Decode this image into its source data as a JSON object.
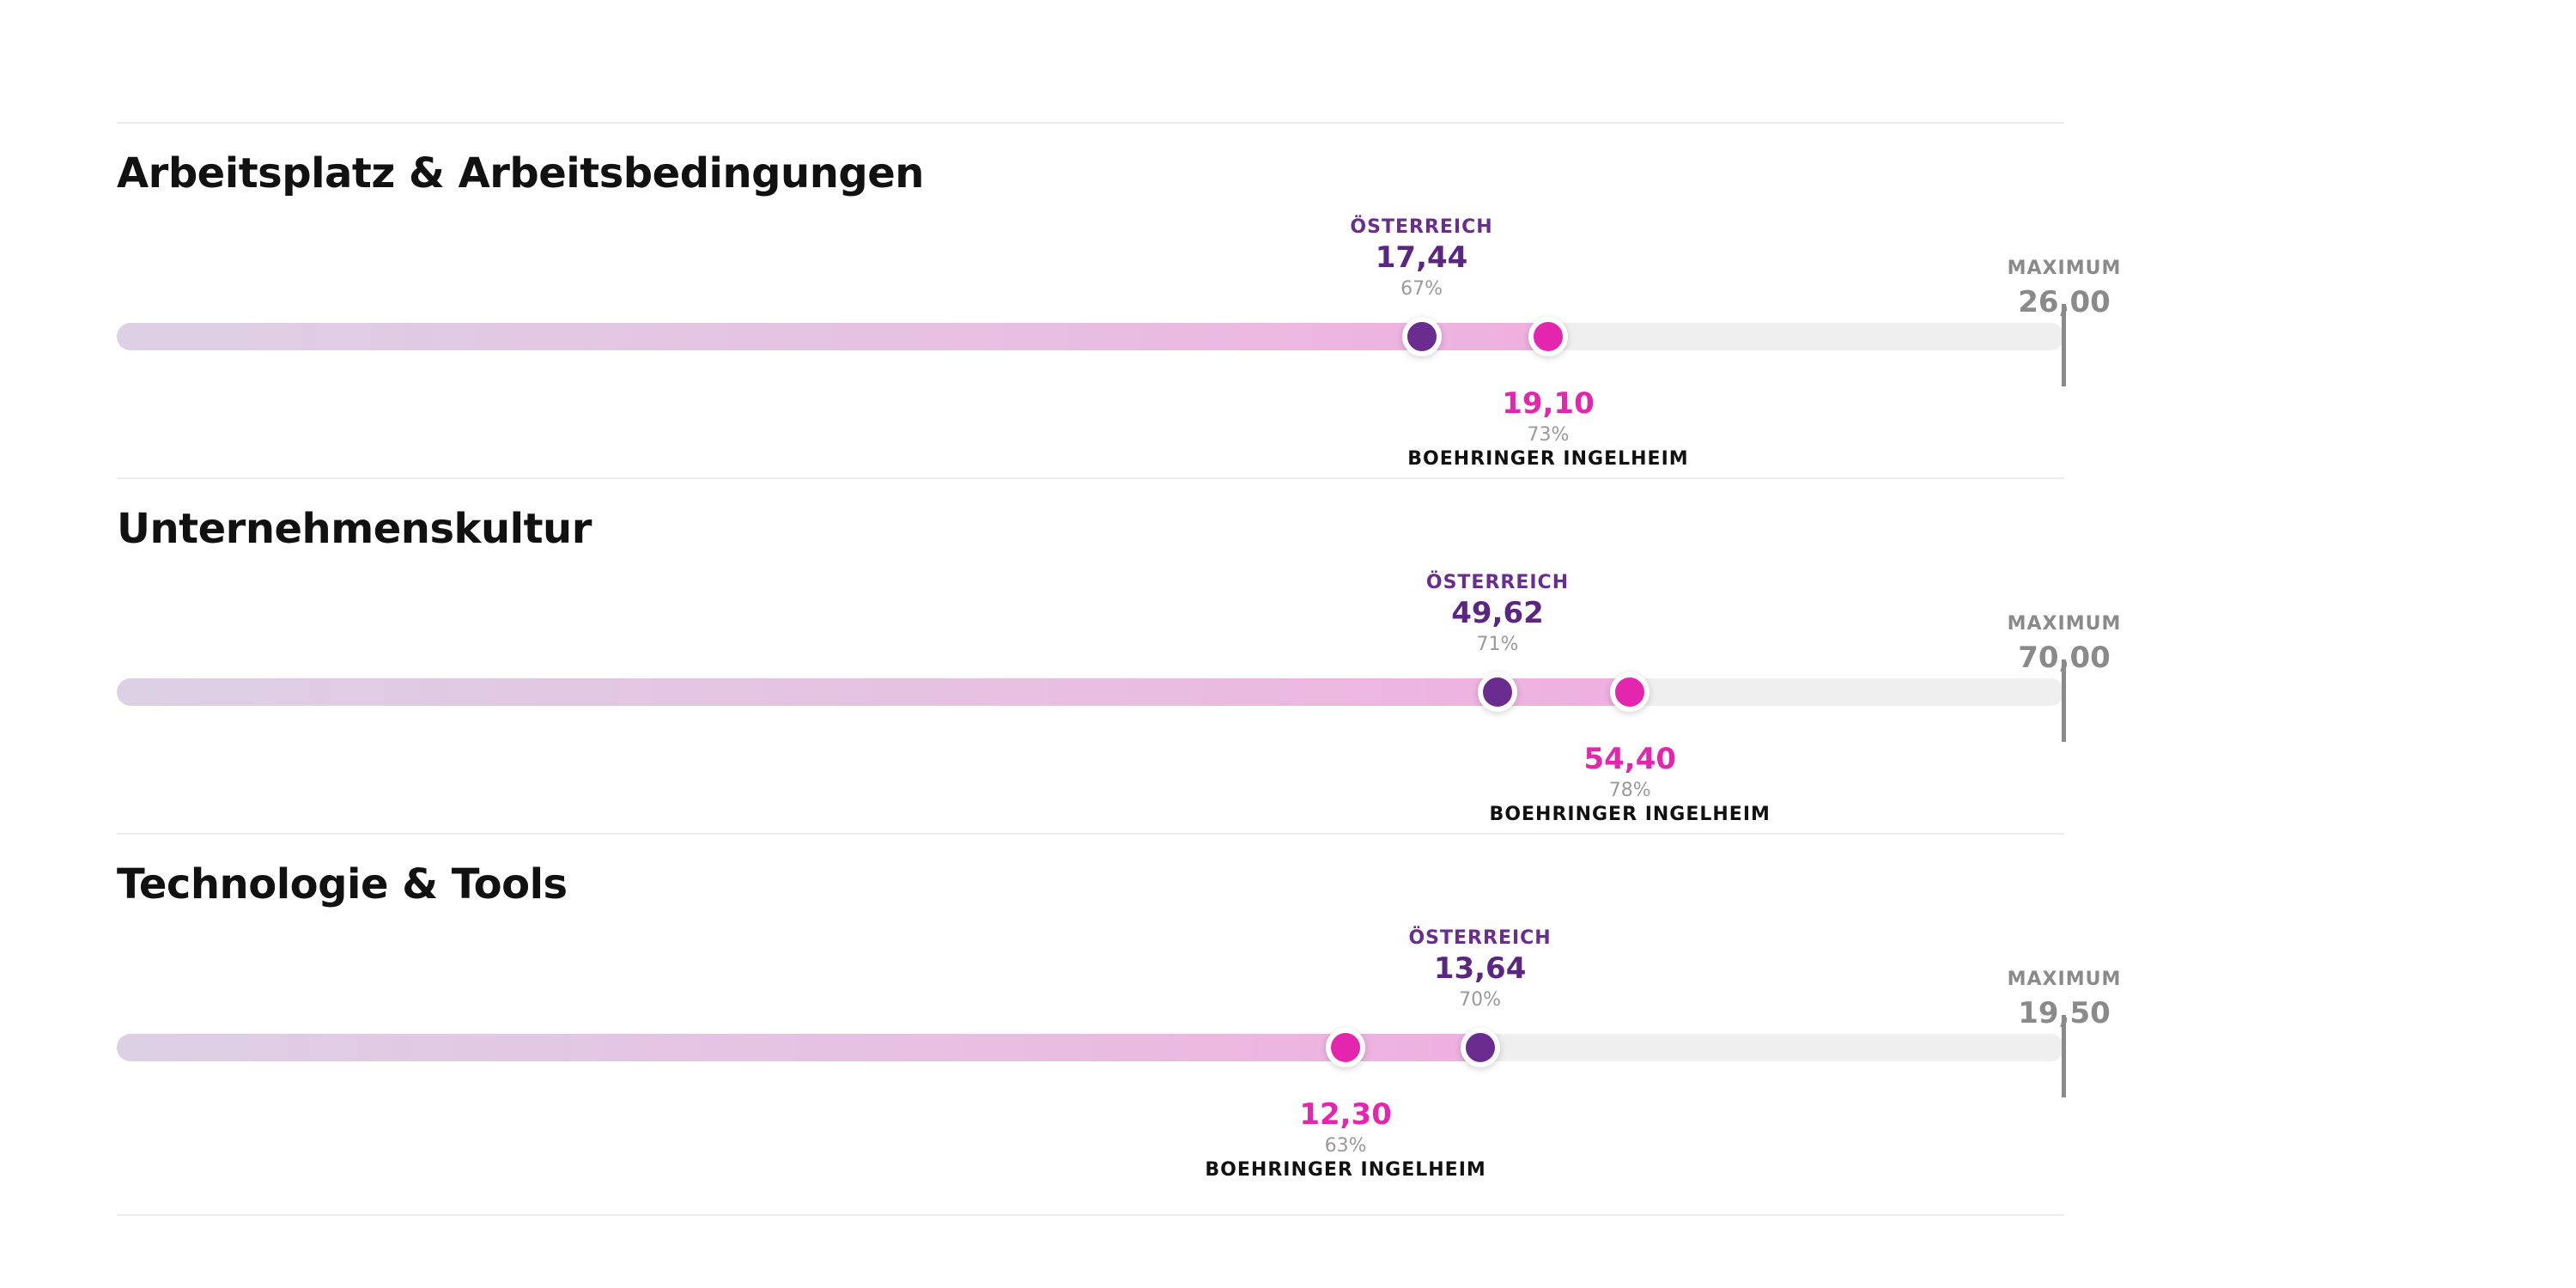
{
  "labels": {
    "austria": "ÖSTERREICH",
    "maximum": "MAXIMUM",
    "company": "BOEHRINGER INGELHEIM"
  },
  "colors": {
    "austria": "#6a2c8e",
    "company": "#e326ad",
    "track": "#efefef",
    "maximum": "#8a8a8a"
  },
  "sections": [
    {
      "title": "Arbeitsplatz & Arbeitsbedingungen",
      "maximum": "26,00",
      "austria": {
        "value": "17,44",
        "percent": "67%",
        "fraction": 0.67
      },
      "company": {
        "value": "19,10",
        "percent": "73%",
        "fraction": 0.735
      }
    },
    {
      "title": "Unternehmenskultur",
      "maximum": "70,00",
      "austria": {
        "value": "49,62",
        "percent": "71%",
        "fraction": 0.709
      },
      "company": {
        "value": "54,40",
        "percent": "78%",
        "fraction": 0.777
      }
    },
    {
      "title": "Technologie & Tools",
      "maximum": "19,50",
      "austria": {
        "value": "13,64",
        "percent": "70%",
        "fraction": 0.7
      },
      "company": {
        "value": "12,30",
        "percent": "63%",
        "fraction": 0.631
      }
    }
  ]
}
